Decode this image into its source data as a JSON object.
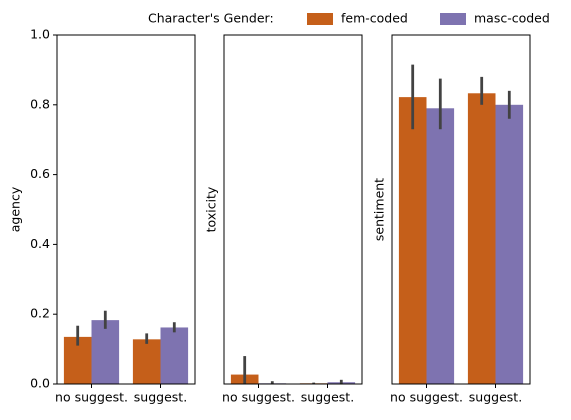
{
  "chart_data": [
    {
      "type": "bar",
      "ylabel": "agency",
      "legend_title": "Character's Gender:",
      "categories": [
        "no suggest.",
        "suggest."
      ],
      "series": [
        {
          "name": "fem-coded",
          "color": "#c55f1a",
          "values": [
            0.135,
            0.128
          ],
          "err_low": [
            0.11,
            0.115
          ],
          "err_high": [
            0.167,
            0.145
          ]
        },
        {
          "name": "masc-coded",
          "color": "#7e73b0",
          "values": [
            0.183,
            0.162
          ],
          "err_low": [
            0.158,
            0.148
          ],
          "err_high": [
            0.21,
            0.177
          ]
        }
      ],
      "ylim": [
        0,
        1
      ],
      "yticks": [
        {
          "value": 0,
          "label": "0.0"
        },
        0.2,
        0.4,
        0.6,
        0.8,
        {
          "value": 1,
          "label": "1.0"
        }
      ]
    },
    {
      "type": "bar",
      "ylabel": "toxicity",
      "categories": [
        "no suggest.",
        "suggest."
      ],
      "series": [
        {
          "values": [
            0.027,
            0.002
          ],
          "err_low": [
            0,
            0
          ],
          "err_high": [
            0.08,
            0.004
          ]
        },
        {
          "values": [
            0.002,
            0.005
          ],
          "err_low": [
            0,
            0
          ],
          "err_high": [
            0.008,
            0.012
          ]
        }
      ],
      "ylim": [
        0,
        1
      ]
    },
    {
      "type": "bar",
      "ylabel": "sentiment",
      "categories": [
        "no suggest.",
        "suggest."
      ],
      "series": [
        {
          "values": [
            0.822,
            0.833
          ],
          "err_low": [
            0.73,
            0.8
          ],
          "err_high": [
            0.915,
            0.88
          ]
        },
        {
          "values": [
            0.79,
            0.8
          ],
          "err_low": [
            0.73,
            0.76
          ],
          "err_high": [
            0.875,
            0.84
          ]
        }
      ],
      "ylim": [
        0,
        1
      ]
    }
  ]
}
